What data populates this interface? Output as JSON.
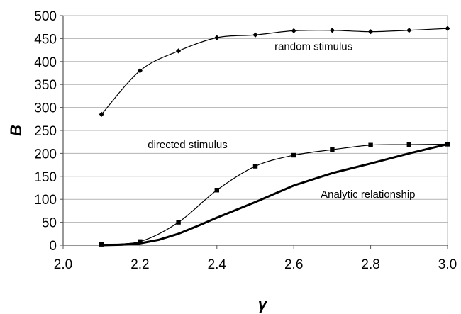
{
  "chart_data": {
    "type": "line",
    "title": "",
    "xlabel": "γ",
    "ylabel": "B",
    "xlim": [
      2.0,
      3.0
    ],
    "ylim": [
      0,
      500
    ],
    "x_ticks": [
      "2.0",
      "2.2",
      "2.4",
      "2.6",
      "2.8",
      "3.0"
    ],
    "x_tick_values": [
      2.0,
      2.2,
      2.4,
      2.6,
      2.8,
      3.0
    ],
    "y_ticks": [
      "0",
      "50",
      "100",
      "150",
      "200",
      "250",
      "300",
      "350",
      "400",
      "450",
      "500"
    ],
    "y_tick_values": [
      0,
      50,
      100,
      150,
      200,
      250,
      300,
      350,
      400,
      450,
      500
    ],
    "grid": "horizontal",
    "series": [
      {
        "label": "random stimulus",
        "marker": "diamond",
        "x": [
          2.1,
          2.2,
          2.3,
          2.4,
          2.5,
          2.6,
          2.7,
          2.8,
          2.9,
          3.0
        ],
        "y": [
          285,
          380,
          423,
          452,
          458,
          467,
          468,
          465,
          468,
          472
        ],
        "label_at": [
          2.55,
          433
        ]
      },
      {
        "label": "directed stimulus",
        "marker": "square",
        "x": [
          2.1,
          2.2,
          2.3,
          2.4,
          2.5,
          2.6,
          2.7,
          2.8,
          2.9,
          3.0
        ],
        "y": [
          2,
          8,
          50,
          120,
          172,
          196,
          208,
          218,
          219,
          220
        ],
        "label_at": [
          2.22,
          219
        ]
      },
      {
        "label": "Analytic relationship",
        "marker": "none",
        "thick": true,
        "x": [
          2.1,
          2.15,
          2.2,
          2.25,
          2.3,
          2.35,
          2.4,
          2.5,
          2.6,
          2.7,
          2.8,
          2.9,
          3.0
        ],
        "y": [
          0,
          1,
          4,
          12,
          25,
          42,
          60,
          94,
          130,
          157,
          178,
          200,
          220
        ],
        "label_at": [
          2.67,
          111
        ]
      }
    ]
  }
}
